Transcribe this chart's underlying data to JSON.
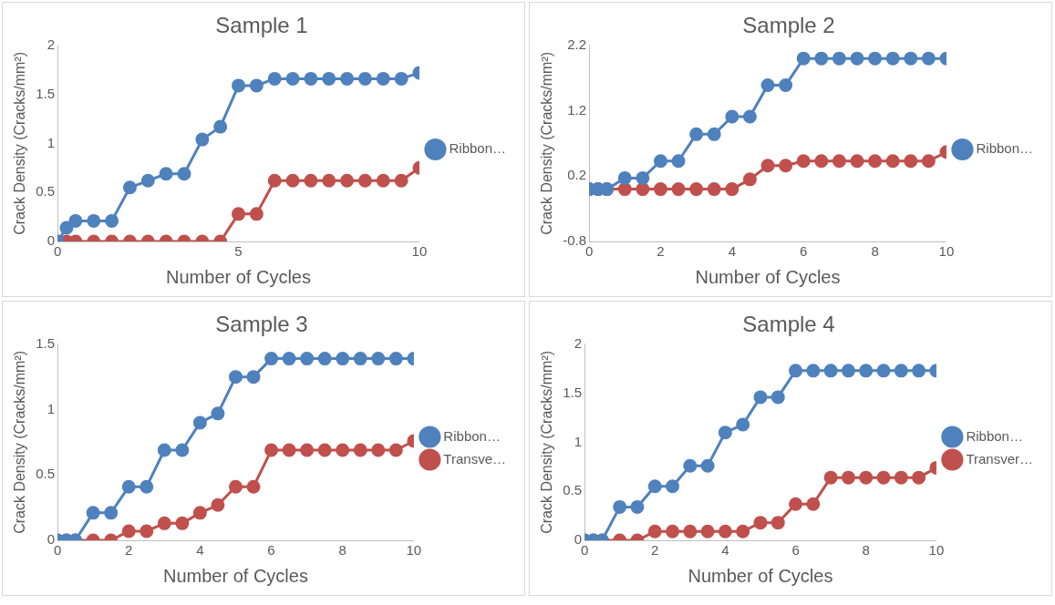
{
  "chart_data": [
    {
      "type": "line",
      "title": "Sample 1",
      "xlabel": "Number of Cycles",
      "ylabel": "Crack Density (Cracks/mm²)",
      "x": [
        0,
        0.25,
        0.5,
        1,
        1.5,
        2,
        2.5,
        3,
        3.5,
        4,
        4.5,
        5,
        5.5,
        6,
        6.5,
        7,
        7.5,
        8,
        8.5,
        9,
        9.5,
        10
      ],
      "xlim": [
        0,
        10
      ],
      "xticks": [
        0,
        5,
        10
      ],
      "ylim": [
        0,
        2
      ],
      "yticks": [
        0,
        0.5,
        1,
        1.5,
        2
      ],
      "grid": false,
      "legend": "right",
      "marker": "circle",
      "line_style": "solid",
      "series": [
        {
          "name": "Ribbon…",
          "color": "#4f81bd",
          "values": [
            0,
            0.14,
            0.21,
            0.21,
            0.21,
            0.55,
            0.62,
            0.69,
            0.69,
            1.04,
            1.17,
            1.59,
            1.59,
            1.66,
            1.66,
            1.66,
            1.66,
            1.66,
            1.66,
            1.66,
            1.66,
            1.72
          ]
        },
        {
          "color": "#c0504d",
          "values": [
            0,
            0,
            0,
            0,
            0,
            0,
            0,
            0,
            0,
            0,
            0,
            0.28,
            0.28,
            0.62,
            0.62,
            0.62,
            0.62,
            0.62,
            0.62,
            0.62,
            0.62,
            0.75
          ]
        }
      ]
    },
    {
      "type": "line",
      "title": "Sample 2",
      "xlabel": "Number of Cycles",
      "ylabel": "Crack Density (Cracks/mm²)",
      "x": [
        0,
        0.25,
        0.5,
        1,
        1.5,
        2,
        2.5,
        3,
        3.5,
        4,
        4.5,
        5,
        5.5,
        6,
        6.5,
        7,
        7.5,
        8,
        8.5,
        9,
        9.5,
        10
      ],
      "xlim": [
        0,
        10
      ],
      "xticks": [
        0,
        2,
        4,
        6,
        8,
        10
      ],
      "ylim": [
        -0.8,
        2.2
      ],
      "yticks": [
        -0.8,
        0.2,
        1.2,
        2.2
      ],
      "grid": false,
      "legend": "right",
      "marker": "circle",
      "line_style": "solid",
      "series": [
        {
          "name": "Ribbon…",
          "color": "#4f81bd",
          "values": [
            0,
            0,
            0,
            0.17,
            0.17,
            0.43,
            0.43,
            0.84,
            0.84,
            1.11,
            1.11,
            1.59,
            1.59,
            2,
            2,
            2,
            2,
            2,
            2,
            2,
            2,
            2
          ]
        },
        {
          "color": "#c0504d",
          "values": [
            0,
            0,
            0,
            0,
            0,
            0,
            0,
            0,
            0,
            0,
            0.15,
            0.36,
            0.36,
            0.43,
            0.43,
            0.43,
            0.43,
            0.43,
            0.43,
            0.43,
            0.43,
            0.57
          ]
        }
      ]
    },
    {
      "type": "line",
      "title": "Sample 3",
      "xlabel": "Number of Cycles",
      "ylabel": "Crack Density (Cracks/mm²)",
      "x": [
        0,
        0.25,
        0.5,
        1,
        1.5,
        2,
        2.5,
        3,
        3.5,
        4,
        4.5,
        5,
        5.5,
        6,
        6.5,
        7,
        7.5,
        8,
        8.5,
        9,
        9.5,
        10
      ],
      "xlim": [
        0,
        10
      ],
      "xticks": [
        0,
        2,
        4,
        6,
        8,
        10
      ],
      "ylim": [
        0,
        1.5
      ],
      "yticks": [
        0,
        0.5,
        1,
        1.5
      ],
      "grid": false,
      "legend": "right",
      "marker": "circle",
      "line_style": "solid",
      "series": [
        {
          "name": "Ribbon…",
          "color": "#4f81bd",
          "values": [
            0,
            0,
            0,
            0.21,
            0.21,
            0.41,
            0.41,
            0.69,
            0.69,
            0.9,
            0.97,
            1.25,
            1.25,
            1.39,
            1.39,
            1.39,
            1.39,
            1.39,
            1.39,
            1.39,
            1.39,
            1.39
          ]
        },
        {
          "name": "Transve…",
          "color": "#c0504d",
          "values": [
            0,
            0,
            0,
            0,
            0,
            0.07,
            0.07,
            0.13,
            0.13,
            0.21,
            0.27,
            0.41,
            0.41,
            0.69,
            0.69,
            0.69,
            0.69,
            0.69,
            0.69,
            0.69,
            0.69,
            0.76
          ]
        }
      ]
    },
    {
      "type": "line",
      "title": "Sample 4",
      "xlabel": "Number of Cycles",
      "ylabel": "Crack Density (Cracks/mm²)",
      "x": [
        0,
        0.25,
        0.5,
        1,
        1.5,
        2,
        2.5,
        3,
        3.5,
        4,
        4.5,
        5,
        5.5,
        6,
        6.5,
        7,
        7.5,
        8,
        8.5,
        9,
        9.5,
        10
      ],
      "xlim": [
        0,
        10
      ],
      "xticks": [
        0,
        2,
        4,
        6,
        8,
        10
      ],
      "ylim": [
        0,
        2
      ],
      "yticks": [
        0,
        0.5,
        1,
        1.5,
        2
      ],
      "grid": false,
      "legend": "right",
      "marker": "circle",
      "line_style": "solid",
      "series": [
        {
          "name": "Ribbon…",
          "color": "#4f81bd",
          "values": [
            0,
            0,
            0,
            0.34,
            0.34,
            0.55,
            0.55,
            0.76,
            0.76,
            1.1,
            1.18,
            1.46,
            1.46,
            1.73,
            1.73,
            1.73,
            1.73,
            1.73,
            1.73,
            1.73,
            1.73,
            1.73
          ]
        },
        {
          "name": "Transver…",
          "color": "#c0504d",
          "values": [
            0,
            0,
            0,
            0,
            0,
            0.09,
            0.09,
            0.09,
            0.09,
            0.09,
            0.09,
            0.18,
            0.18,
            0.37,
            0.37,
            0.64,
            0.64,
            0.64,
            0.64,
            0.64,
            0.64,
            0.74
          ]
        }
      ]
    }
  ]
}
